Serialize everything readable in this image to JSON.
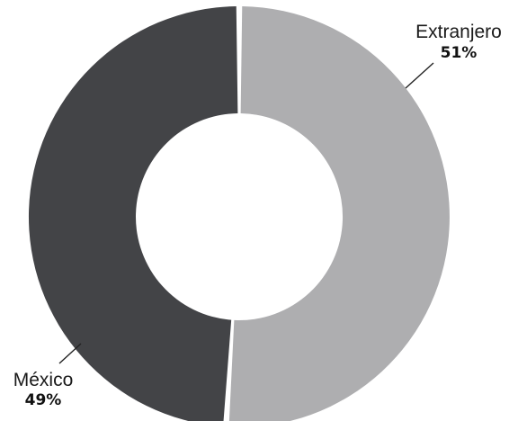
{
  "chart_data": {
    "type": "pie",
    "style": "donut",
    "title": "",
    "legend": "none",
    "slices": [
      {
        "label": "Extranjero",
        "value": 51,
        "value_label": "51%",
        "color": "#aeaeb0"
      },
      {
        "label": "México",
        "value": 49,
        "value_label": "49%",
        "color": "#434447"
      }
    ]
  }
}
